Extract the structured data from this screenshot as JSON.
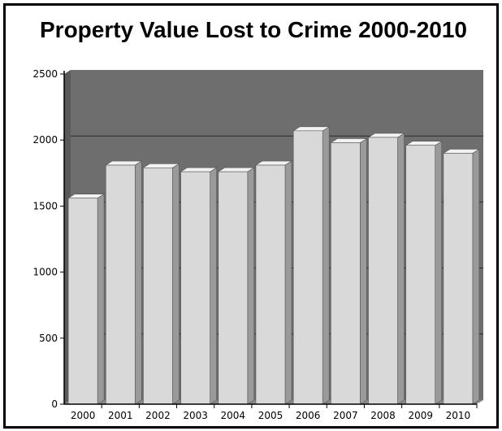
{
  "title": "Property Value Lost to Crime 2000-2010",
  "colors": {
    "plot_background": "#6e6e6e",
    "bar_front": "#d9d9d9",
    "bar_top": "#f2f2f2",
    "bar_side": "#9a9a9a",
    "gridline": "#2a2a2a"
  },
  "chart_data": {
    "type": "bar",
    "title": "Property Value Lost to Crime 2000-2010",
    "xlabel": "",
    "ylabel": "",
    "categories": [
      "2000",
      "2001",
      "2002",
      "2003",
      "2004",
      "2005",
      "2006",
      "2007",
      "2008",
      "2009",
      "2010"
    ],
    "values": [
      1560,
      1810,
      1790,
      1760,
      1760,
      1810,
      2070,
      1980,
      2020,
      1960,
      1900
    ],
    "ylim": [
      0,
      2500
    ],
    "yticks": [
      "0",
      "500",
      "1000",
      "1500",
      "2000",
      "2500"
    ],
    "grid": true,
    "legend": "none"
  }
}
